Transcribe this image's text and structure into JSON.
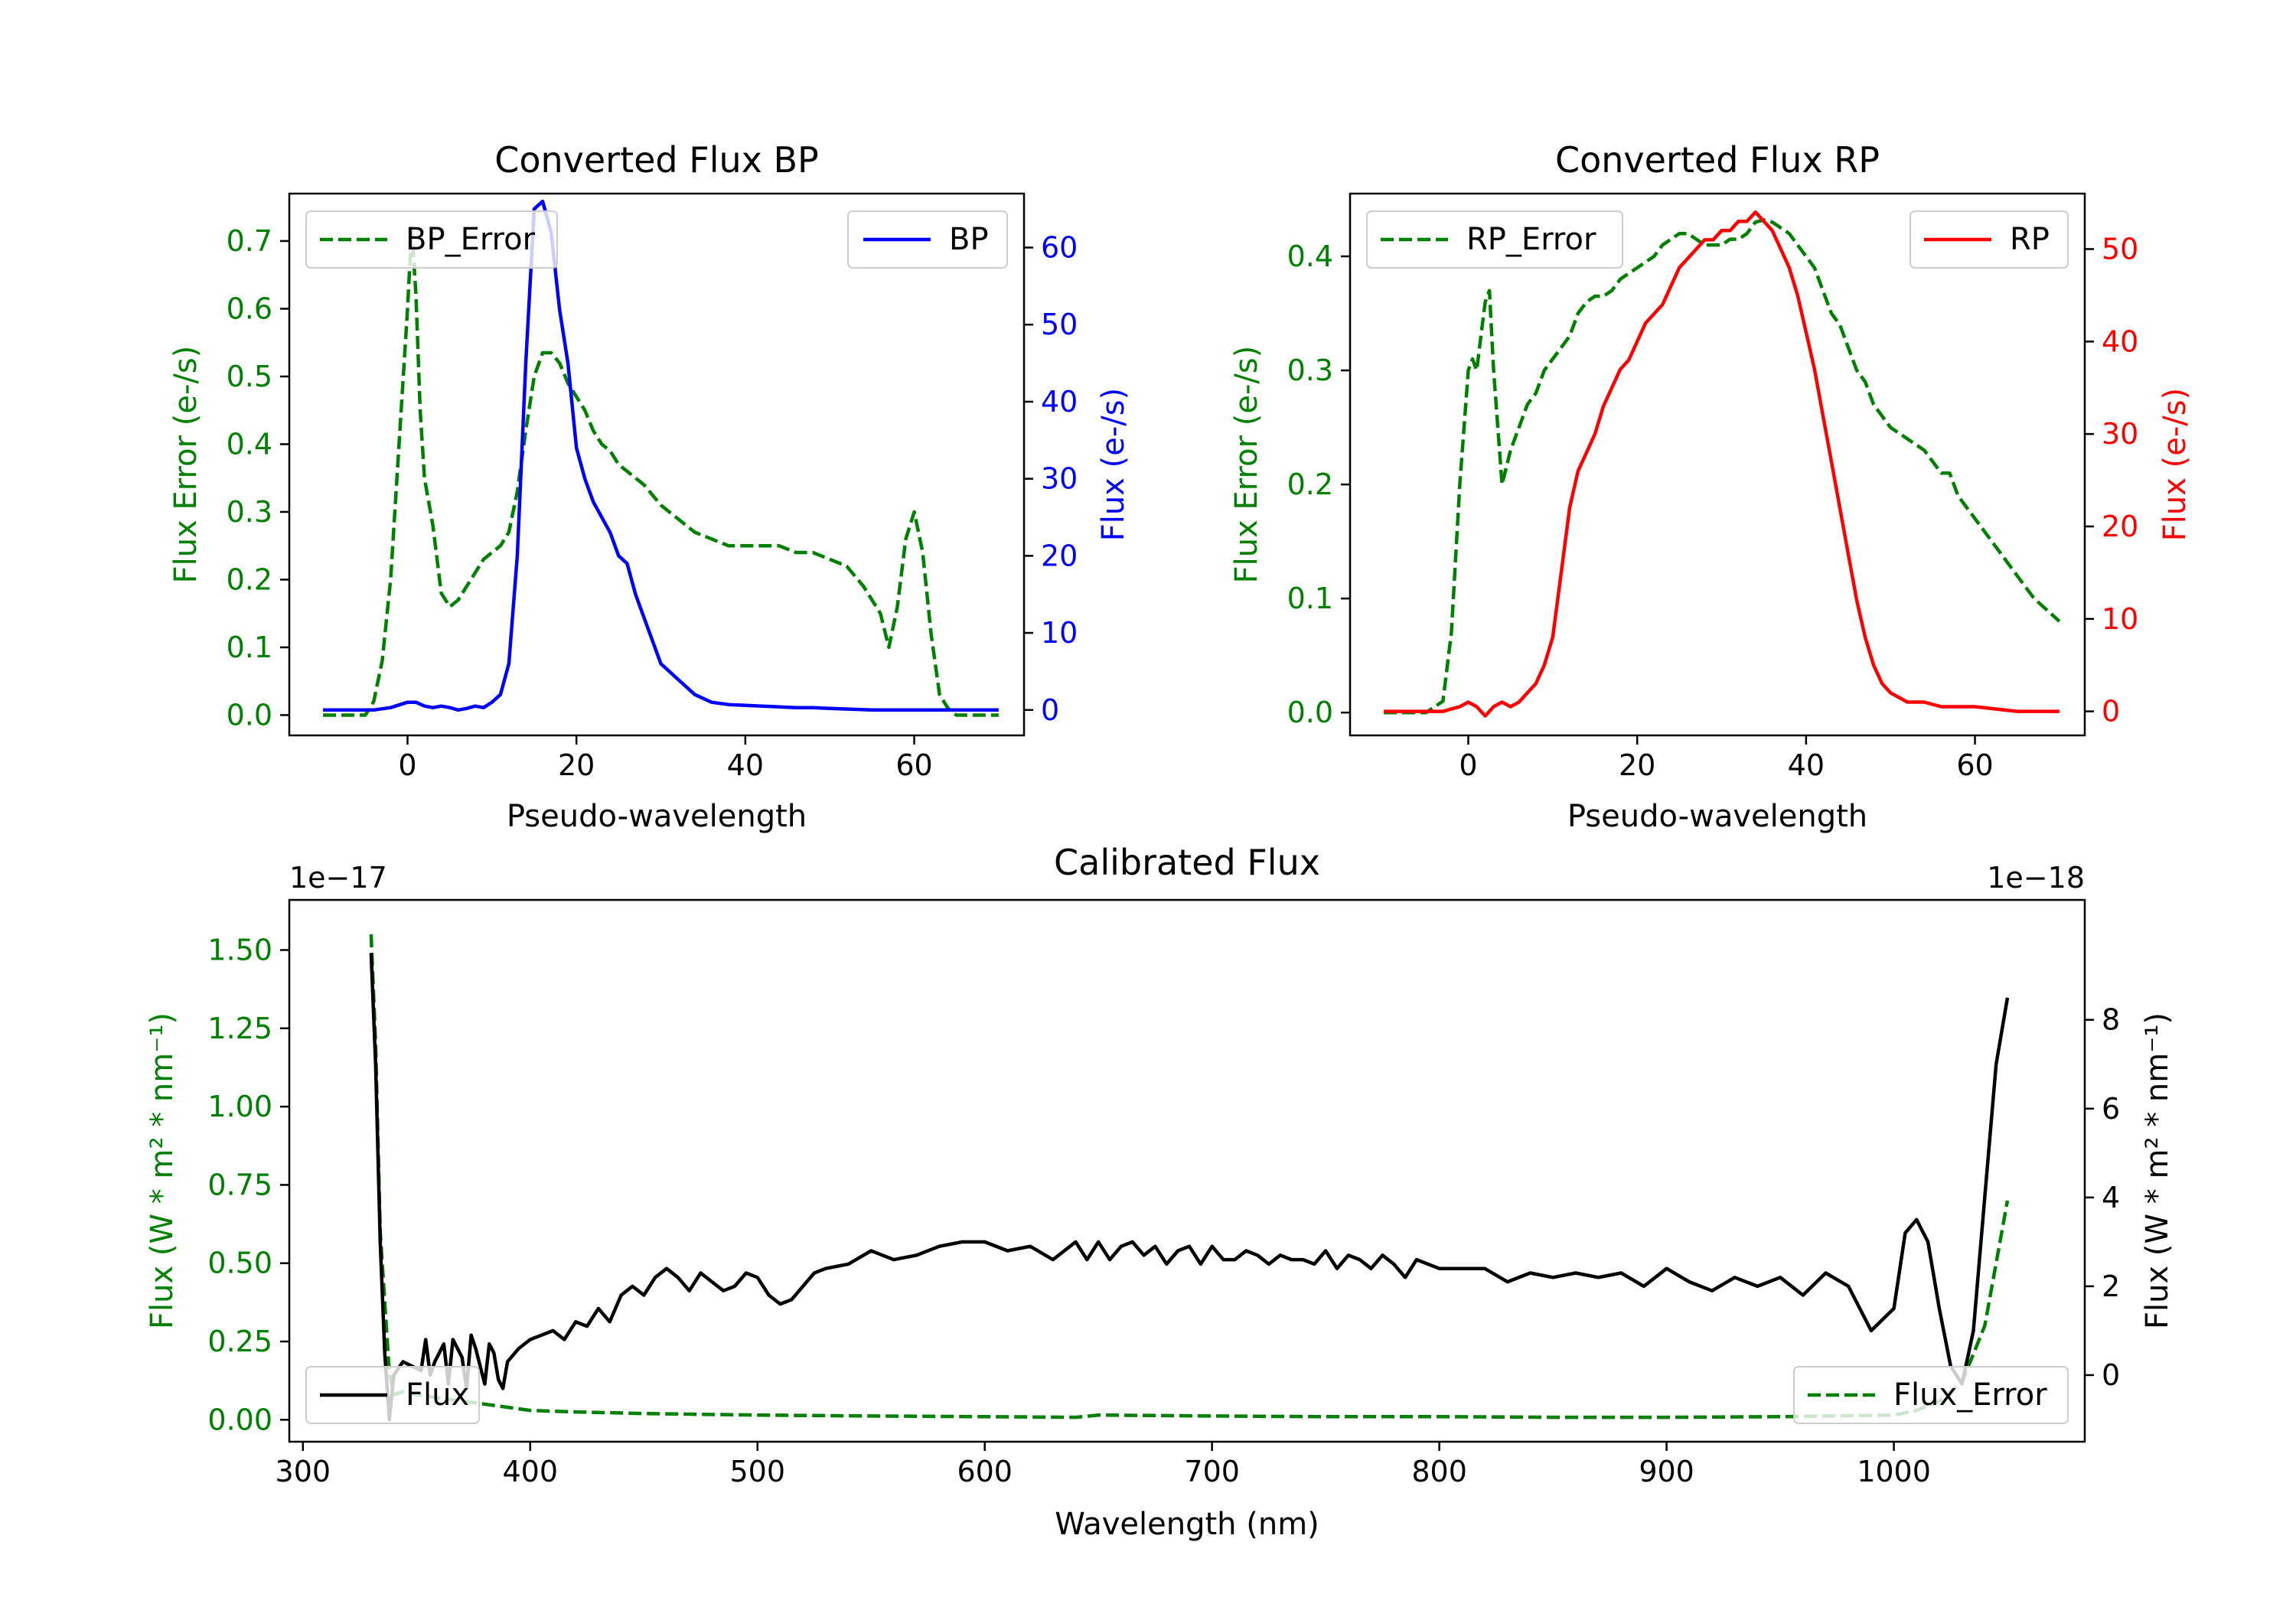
{
  "chart_data": [
    {
      "type": "line",
      "title": "Converted Flux BP",
      "xlabel": "Pseudo-wavelength",
      "ylabel_left": "Flux Error (e-/s)",
      "ylabel_right": "Flux (e-/s)",
      "xlim": [
        -14,
        73
      ],
      "ylim_left": [
        -0.03,
        0.77
      ],
      "ylim_right": [
        -3.3,
        67
      ],
      "xticks": [
        0,
        20,
        40,
        60
      ],
      "yticks_left": [
        "0.0",
        "0.1",
        "0.2",
        "0.3",
        "0.4",
        "0.5",
        "0.6",
        "0.7"
      ],
      "yticks_right": [
        "0",
        "10",
        "20",
        "30",
        "40",
        "50",
        "60"
      ],
      "colors": {
        "left": "#008000",
        "right": "#0000ff"
      },
      "series": [
        {
          "name": "BP_Error",
          "axis": "left",
          "style": "dashed",
          "color": "#008000",
          "x": [
            -10,
            -5,
            -4,
            -3,
            -2,
            -1,
            0,
            0.5,
            1,
            1.5,
            2,
            3,
            4,
            5,
            6,
            7,
            8,
            9,
            10,
            11,
            12,
            13,
            14,
            15,
            16,
            17,
            18,
            19,
            20,
            21,
            22,
            23,
            24,
            25,
            26,
            27,
            28,
            30,
            32,
            34,
            36,
            38,
            40,
            42,
            44,
            46,
            48,
            50,
            52,
            54,
            56,
            57,
            58,
            59,
            60,
            61,
            62,
            63,
            64,
            65,
            67,
            70
          ],
          "y": [
            0,
            0,
            0.02,
            0.08,
            0.2,
            0.4,
            0.6,
            0.72,
            0.62,
            0.45,
            0.35,
            0.28,
            0.18,
            0.16,
            0.17,
            0.19,
            0.21,
            0.23,
            0.24,
            0.25,
            0.27,
            0.33,
            0.42,
            0.5,
            0.535,
            0.535,
            0.52,
            0.49,
            0.47,
            0.45,
            0.42,
            0.4,
            0.39,
            0.37,
            0.36,
            0.35,
            0.34,
            0.31,
            0.29,
            0.27,
            0.26,
            0.25,
            0.25,
            0.25,
            0.25,
            0.24,
            0.24,
            0.23,
            0.22,
            0.19,
            0.15,
            0.1,
            0.16,
            0.26,
            0.3,
            0.24,
            0.12,
            0.03,
            0.01,
            0,
            0,
            0
          ]
        },
        {
          "name": "BP",
          "axis": "right",
          "style": "solid",
          "color": "#0000ff",
          "x": [
            -10,
            -4,
            -2,
            0,
            1,
            2,
            3,
            4,
            5,
            6,
            7,
            8,
            9,
            10,
            11,
            12,
            13,
            14,
            15,
            16,
            17,
            18,
            19,
            20,
            21,
            22,
            23,
            24,
            25,
            26,
            27,
            28,
            30,
            32,
            34,
            36,
            38,
            40,
            42,
            44,
            46,
            48,
            50,
            55,
            60,
            65,
            70
          ],
          "y": [
            0,
            0,
            0.3,
            1,
            1,
            0.5,
            0.3,
            0.5,
            0.3,
            0,
            0.2,
            0.5,
            0.3,
            1,
            2,
            6,
            20,
            45,
            65,
            66,
            62,
            52,
            45,
            34,
            30,
            27,
            25,
            23,
            20,
            19,
            15,
            12,
            6,
            4,
            2,
            1,
            0.7,
            0.6,
            0.5,
            0.4,
            0.3,
            0.3,
            0.2,
            0,
            0,
            0,
            0
          ]
        }
      ],
      "legend": {
        "left": "BP_Error",
        "right": "BP"
      }
    },
    {
      "type": "line",
      "title": "Converted Flux RP",
      "xlabel": "Pseudo-wavelength",
      "ylabel_left": "Flux Error (e-/s)",
      "ylabel_right": "Flux (e-/s)",
      "xlim": [
        -14,
        73
      ],
      "ylim_left": [
        -0.02,
        0.455
      ],
      "ylim_right": [
        -2.6,
        56
      ],
      "xticks": [
        0,
        20,
        40,
        60
      ],
      "yticks_left": [
        "0.0",
        "0.1",
        "0.2",
        "0.3",
        "0.4"
      ],
      "yticks_right": [
        "0",
        "10",
        "20",
        "30",
        "40",
        "50"
      ],
      "colors": {
        "left": "#008000",
        "right": "#ff0000"
      },
      "series": [
        {
          "name": "RP_Error",
          "axis": "left",
          "style": "dashed",
          "color": "#008000",
          "x": [
            -10,
            -5,
            -3,
            -2,
            -1,
            0,
            0.5,
            1,
            1.5,
            2,
            2.5,
            3,
            3.5,
            4,
            5,
            6,
            7,
            8,
            9,
            10,
            11,
            12,
            13,
            14,
            15,
            16,
            17,
            18,
            19,
            20,
            21,
            22,
            23,
            24,
            25,
            26,
            27,
            28,
            29,
            30,
            31,
            32,
            33,
            34,
            35,
            36,
            37,
            38,
            39,
            40,
            41,
            42,
            43,
            44,
            45,
            46,
            47,
            48,
            49,
            50,
            52,
            54,
            55,
            56,
            57,
            58,
            59,
            60,
            61,
            62,
            63,
            64,
            65,
            67,
            70
          ],
          "y": [
            0,
            0,
            0.01,
            0.07,
            0.2,
            0.3,
            0.31,
            0.3,
            0.33,
            0.36,
            0.37,
            0.3,
            0.25,
            0.2,
            0.23,
            0.25,
            0.27,
            0.28,
            0.3,
            0.31,
            0.32,
            0.33,
            0.35,
            0.36,
            0.365,
            0.365,
            0.37,
            0.38,
            0.385,
            0.39,
            0.395,
            0.4,
            0.41,
            0.415,
            0.42,
            0.42,
            0.415,
            0.41,
            0.41,
            0.41,
            0.415,
            0.415,
            0.42,
            0.43,
            0.432,
            0.43,
            0.425,
            0.42,
            0.41,
            0.4,
            0.39,
            0.37,
            0.35,
            0.34,
            0.32,
            0.3,
            0.29,
            0.27,
            0.26,
            0.25,
            0.24,
            0.23,
            0.22,
            0.21,
            0.21,
            0.19,
            0.18,
            0.17,
            0.16,
            0.15,
            0.14,
            0.13,
            0.12,
            0.1,
            0.08
          ]
        },
        {
          "name": "RP",
          "axis": "right",
          "style": "solid",
          "color": "#ff0000",
          "x": [
            -10,
            -3,
            -1,
            0,
            1,
            2,
            3,
            4,
            5,
            6,
            7,
            8,
            9,
            10,
            11,
            12,
            13,
            14,
            15,
            16,
            17,
            18,
            19,
            20,
            21,
            22,
            23,
            24,
            25,
            26,
            27,
            28,
            29,
            30,
            31,
            32,
            33,
            34,
            35,
            36,
            37,
            38,
            39,
            40,
            41,
            42,
            43,
            44,
            45,
            46,
            47,
            48,
            49,
            50,
            52,
            54,
            56,
            58,
            60,
            65,
            70
          ],
          "y": [
            0,
            0,
            0.5,
            1,
            0.5,
            -0.5,
            0.5,
            1,
            0.5,
            1,
            2,
            3,
            5,
            8,
            15,
            22,
            26,
            28,
            30,
            33,
            35,
            37,
            38,
            40,
            42,
            43,
            44,
            46,
            48,
            49,
            50,
            51,
            51,
            52,
            52,
            53,
            53,
            54,
            53,
            52,
            50,
            48,
            45,
            41,
            37,
            32,
            27,
            22,
            17,
            12,
            8,
            5,
            3,
            2,
            1,
            1,
            0.5,
            0.5,
            0.5,
            0,
            0
          ]
        }
      ],
      "legend": {
        "left": "RP_Error",
        "right": "RP"
      }
    },
    {
      "type": "line",
      "title": "Calibrated Flux",
      "xlabel": "Wavelength (nm)",
      "ylabel_left": "Flux (W * m² * nm⁻¹)",
      "ylabel_right": "Flux (W * m² * nm⁻¹)",
      "offset_left": "1e−17",
      "offset_right": "1e−18",
      "xlim": [
        294,
        1084
      ],
      "ylim_left": [
        -0.07,
        1.66
      ],
      "ylim_right": [
        -1.5,
        10.7
      ],
      "xticks": [
        "300",
        "400",
        "500",
        "600",
        "700",
        "800",
        "900",
        "1000"
      ],
      "yticks_left": [
        "0.00",
        "0.25",
        "0.50",
        "0.75",
        "1.00",
        "1.25",
        "1.50"
      ],
      "yticks_right": [
        "0",
        "2",
        "4",
        "6",
        "8"
      ],
      "colors": {
        "left": "#008000",
        "right": "#000000"
      },
      "series": [
        {
          "name": "Flux",
          "axis": "right",
          "style": "solid",
          "color": "#000000",
          "x": [
            330,
            332,
            334,
            336,
            338,
            340,
            344,
            348,
            352,
            354,
            356,
            358,
            362,
            364,
            366,
            370,
            372,
            374,
            376,
            380,
            382,
            384,
            386,
            388,
            390,
            395,
            400,
            405,
            410,
            415,
            420,
            425,
            430,
            435,
            440,
            445,
            450,
            455,
            460,
            465,
            470,
            475,
            480,
            485,
            490,
            495,
            500,
            505,
            510,
            515,
            520,
            525,
            530,
            540,
            550,
            560,
            570,
            580,
            590,
            600,
            610,
            620,
            630,
            640,
            645,
            650,
            655,
            660,
            665,
            670,
            675,
            680,
            685,
            690,
            695,
            700,
            705,
            710,
            715,
            720,
            725,
            730,
            735,
            740,
            745,
            750,
            755,
            760,
            765,
            770,
            775,
            780,
            785,
            790,
            795,
            800,
            810,
            820,
            830,
            840,
            850,
            860,
            870,
            880,
            890,
            900,
            910,
            920,
            930,
            940,
            950,
            960,
            970,
            980,
            990,
            1000,
            1005,
            1010,
            1015,
            1020,
            1025,
            1030,
            1035,
            1040,
            1045,
            1050
          ],
          "y": [
            9.5,
            7,
            3,
            0.5,
            -1,
            0,
            0.3,
            0.2,
            0.1,
            0.8,
            0,
            0.3,
            0.7,
            -0.2,
            0.8,
            0.4,
            -0.3,
            0.9,
            0.6,
            -0.2,
            0.7,
            0.5,
            -0.1,
            -0.3,
            0.3,
            0.6,
            0.8,
            0.9,
            1,
            0.8,
            1.2,
            1.1,
            1.5,
            1.2,
            1.8,
            2,
            1.8,
            2.2,
            2.4,
            2.2,
            1.9,
            2.3,
            2.1,
            1.9,
            2,
            2.3,
            2.2,
            1.8,
            1.6,
            1.7,
            2,
            2.3,
            2.4,
            2.5,
            2.8,
            2.6,
            2.7,
            2.9,
            3,
            3,
            2.8,
            2.9,
            2.6,
            3,
            2.6,
            3,
            2.6,
            2.9,
            3,
            2.7,
            2.9,
            2.5,
            2.8,
            2.9,
            2.5,
            2.9,
            2.6,
            2.6,
            2.8,
            2.7,
            2.5,
            2.7,
            2.6,
            2.6,
            2.5,
            2.8,
            2.4,
            2.7,
            2.6,
            2.4,
            2.7,
            2.5,
            2.2,
            2.6,
            2.5,
            2.4,
            2.4,
            2.4,
            2.1,
            2.3,
            2.2,
            2.3,
            2.2,
            2.3,
            2.0,
            2.4,
            2.1,
            1.9,
            2.2,
            2.0,
            2.2,
            1.8,
            2.3,
            2.0,
            1.0,
            1.5,
            3.2,
            3.5,
            3,
            1.5,
            0.2,
            -0.2,
            1,
            4,
            7,
            8.5
          ]
        },
        {
          "name": "Flux_Error",
          "axis": "left",
          "style": "dashed",
          "color": "#008000",
          "x": [
            330,
            332,
            334,
            338,
            340,
            344,
            350,
            360,
            370,
            380,
            390,
            400,
            420,
            450,
            500,
            550,
            600,
            640,
            650,
            700,
            750,
            800,
            850,
            900,
            950,
            1000,
            1010,
            1020,
            1030,
            1040,
            1045,
            1050
          ],
          "y": [
            1.55,
            1.2,
            0.6,
            0.15,
            0.08,
            0.09,
            0.08,
            0.07,
            0.06,
            0.05,
            0.04,
            0.03,
            0.025,
            0.02,
            0.015,
            0.012,
            0.01,
            0.008,
            0.015,
            0.012,
            0.01,
            0.01,
            0.008,
            0.008,
            0.01,
            0.015,
            0.03,
            0.06,
            0.12,
            0.3,
            0.5,
            0.7
          ]
        }
      ],
      "legend": {
        "left": "Flux",
        "right": "Flux_Error"
      }
    }
  ]
}
